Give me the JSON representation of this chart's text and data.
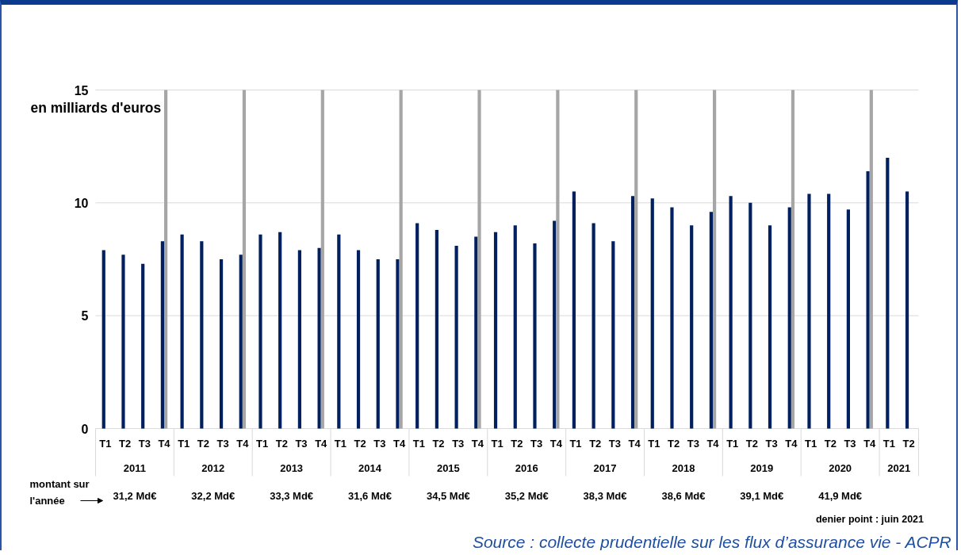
{
  "chart_data": {
    "type": "bar",
    "ylabel": "en milliards d'euros",
    "categories": [
      "T1",
      "T2",
      "T3",
      "T4",
      "T1",
      "T2",
      "T3",
      "T4",
      "T1",
      "T2",
      "T3",
      "T4",
      "T1",
      "T2",
      "T3",
      "T4",
      "T1",
      "T2",
      "T3",
      "T4",
      "T1",
      "T2",
      "T3",
      "T4",
      "T1",
      "T2",
      "T3",
      "T4",
      "T1",
      "T2",
      "T3",
      "T4",
      "T1",
      "T2",
      "T3",
      "T4",
      "T1",
      "T2",
      "T3",
      "T4",
      "T1",
      "T2"
    ],
    "series": [
      {
        "color": "#002060",
        "values": [
          7.9,
          7.7,
          7.3,
          8.3,
          8.6,
          8.3,
          7.5,
          7.7,
          8.6,
          8.7,
          7.9,
          8.0,
          8.6,
          7.9,
          7.5,
          7.5,
          9.1,
          8.8,
          8.1,
          8.5,
          8.7,
          9.0,
          8.2,
          9.2,
          10.5,
          9.1,
          8.3,
          10.3,
          10.2,
          9.8,
          9.0,
          9.6,
          10.3,
          10.0,
          9.0,
          9.8,
          10.4,
          10.4,
          9.7,
          11.4,
          12.0,
          10.5
        ]
      },
      {
        "color": "#a6a6a6",
        "values": [
          null,
          null,
          null,
          15,
          null,
          null,
          null,
          15,
          null,
          null,
          null,
          15,
          null,
          null,
          null,
          15,
          null,
          null,
          null,
          15,
          null,
          null,
          null,
          15,
          null,
          null,
          null,
          15,
          null,
          null,
          null,
          15,
          null,
          null,
          null,
          15,
          null,
          null,
          null,
          15,
          null,
          null
        ]
      }
    ],
    "ylim": [
      0,
      15
    ],
    "yticks": [
      0,
      5,
      10,
      15
    ],
    "grid": "y",
    "annotations": [
      "2011",
      "2012",
      "2013",
      "2014",
      "2015",
      "2016",
      "2017",
      "2018",
      "2019",
      "2020",
      "2021",
      "montant sur l'année",
      "31,2 Md€",
      "32,2 Md€",
      "33,3 Md€",
      "31,6 Md€",
      "34,5 Md€",
      "35,2 Md€",
      "38,3 Md€",
      "38,6 Md€",
      "39,1 Md€",
      "41,9 Md€",
      "denier  point : juin 2021",
      "Source : collecte prudentielle sur les flux d’assurance vie - ACPR"
    ]
  }
}
